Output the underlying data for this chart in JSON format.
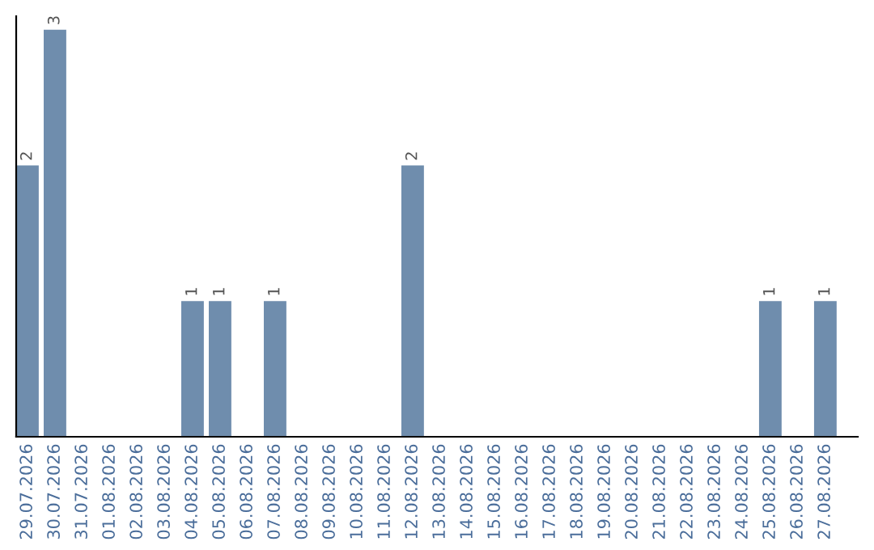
{
  "chart_data": {
    "type": "bar",
    "categories": [
      "29.07.2026",
      "30.07.2026",
      "31.07.2026",
      "01.08.2026",
      "02.08.2026",
      "03.08.2026",
      "04.08.2026",
      "05.08.2026",
      "06.08.2026",
      "07.08.2026",
      "08.08.2026",
      "09.08.2026",
      "10.08.2026",
      "11.08.2026",
      "12.08.2026",
      "13.08.2026",
      "14.08.2026",
      "15.08.2026",
      "16.08.2026",
      "17.08.2026",
      "18.08.2026",
      "19.08.2026",
      "20.08.2026",
      "21.08.2026",
      "22.08.2026",
      "23.08.2026",
      "24.08.2026",
      "25.08.2026",
      "26.08.2026",
      "27.08.2026"
    ],
    "values": [
      2,
      3,
      0,
      0,
      0,
      0,
      1,
      1,
      0,
      1,
      0,
      0,
      0,
      0,
      2,
      0,
      0,
      0,
      0,
      0,
      0,
      0,
      0,
      0,
      0,
      0,
      0,
      1,
      0,
      1
    ],
    "value_labels": [
      "2",
      "3",
      null,
      null,
      null,
      null,
      "1",
      "1",
      null,
      "1",
      null,
      null,
      null,
      null,
      "2",
      null,
      null,
      null,
      null,
      null,
      null,
      null,
      null,
      null,
      null,
      null,
      null,
      "1",
      null,
      "1"
    ],
    "color": "#6f8dad",
    "ylim": [
      0,
      3.1
    ],
    "tick_labels": "x",
    "grid": false,
    "legend": false
  }
}
